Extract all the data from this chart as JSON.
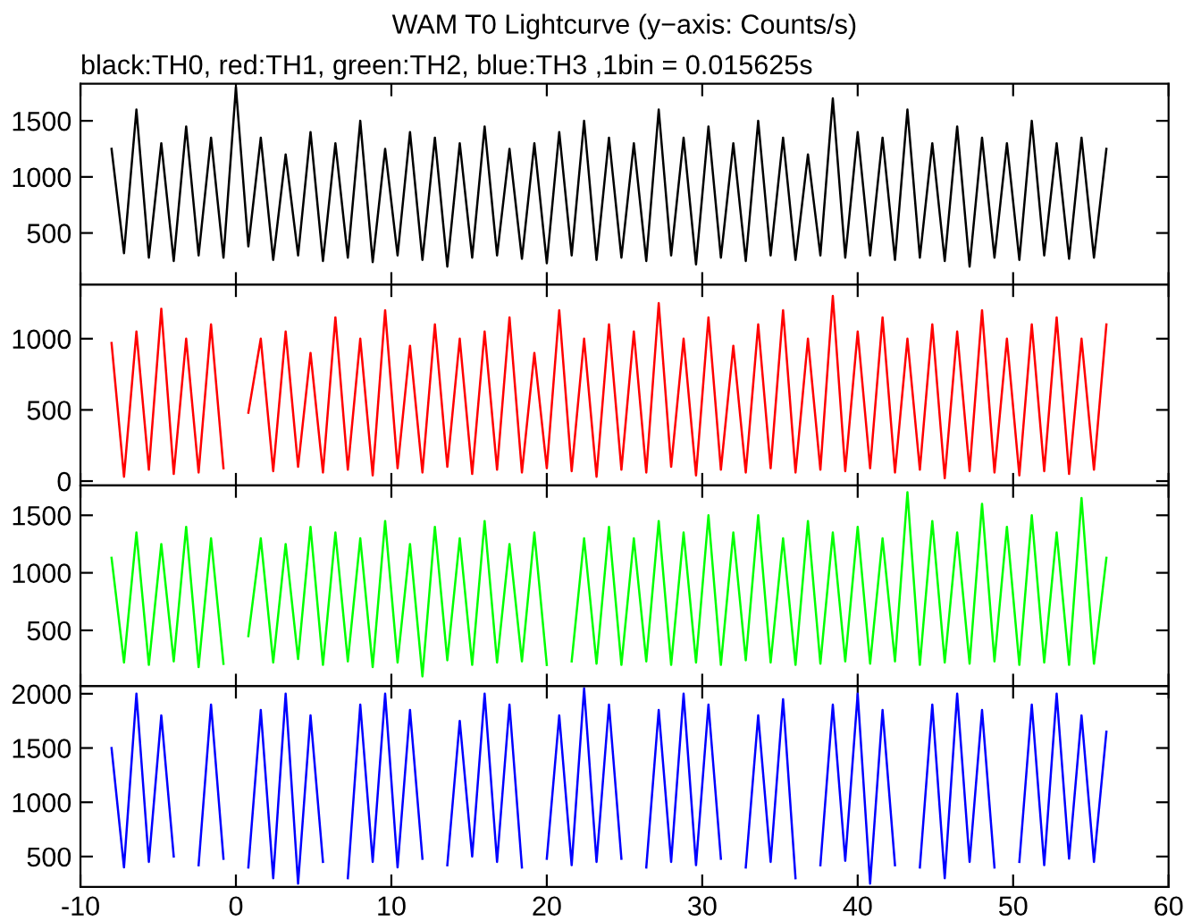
{
  "chart_data": [
    {
      "type": "line",
      "title": "WAM T0 Lightcurve (y−axis: Counts/s)",
      "subtitle": "black:TH0, red:TH1, green:TH2, blue:TH3 ,1bin = 0.015625s",
      "tick_labels": "y",
      "grid": false,
      "marker": "none",
      "line_style": "solid",
      "xlim": [
        -10,
        60
      ],
      "xticks": [
        -10,
        0,
        10,
        20,
        30,
        40,
        50,
        60
      ],
      "ylim": [
        40,
        1830
      ],
      "yticks": [
        500,
        1000,
        1500
      ],
      "x": [
        -8,
        -7.2,
        -6.4,
        -5.6,
        -4.8,
        -4,
        -3.2,
        -2.4,
        -1.6,
        -0.8,
        0,
        0.8,
        1.6,
        2.4,
        3.2,
        4,
        4.8,
        5.6,
        6.4,
        7.2,
        8,
        8.8,
        9.6,
        10.4,
        11.2,
        12,
        12.8,
        13.6,
        14.4,
        15.2,
        16,
        16.8,
        17.6,
        18.4,
        19.2,
        20,
        20.8,
        21.6,
        22.4,
        23.2,
        24,
        24.8,
        25.6,
        26.4,
        27.2,
        28,
        28.8,
        29.6,
        30.4,
        31.2,
        32,
        32.8,
        33.6,
        34.4,
        35.2,
        36,
        36.8,
        37.6,
        38.4,
        39.2,
        40,
        40.8,
        41.6,
        42.4,
        43.2,
        44,
        44.8,
        45.6,
        46.4,
        47.2,
        48,
        48.8,
        49.6,
        50.4,
        51.2,
        52,
        52.8,
        53.6,
        54.4,
        55.2,
        56
      ],
      "series": [
        {
          "color": "#000000",
          "values": [
            1250,
            320,
            1600,
            280,
            1300,
            250,
            1450,
            300,
            1350,
            280,
            1800,
            380,
            1350,
            260,
            1200,
            300,
            1400,
            250,
            1300,
            280,
            1500,
            240,
            1250,
            300,
            1400,
            260,
            1350,
            200,
            1300,
            280,
            1450,
            300,
            1250,
            270,
            1300,
            230,
            1400,
            300,
            1500,
            260,
            1350,
            280,
            1300,
            250,
            1600,
            300,
            1350,
            220,
            1450,
            280,
            1300,
            250,
            1500,
            300,
            1350,
            260,
            1200,
            300,
            1700,
            280,
            1400,
            300,
            1350,
            260,
            1600,
            280,
            1300,
            250,
            1450,
            200,
            1350,
            280,
            1300,
            260,
            1500,
            300,
            1300,
            270,
            1350,
            280,
            1250
          ]
        }
      ]
    },
    {
      "type": "line",
      "tick_labels": "y",
      "grid": false,
      "marker": "none",
      "line_style": "solid",
      "xlim": [
        -10,
        60
      ],
      "xticks": [
        -10,
        0,
        10,
        20,
        30,
        40,
        50,
        60
      ],
      "ylim": [
        -30,
        1380
      ],
      "yticks": [
        0,
        500,
        1000
      ],
      "x": [
        -8,
        -7.2,
        -6.4,
        -5.6,
        -4.8,
        -4,
        -3.2,
        -2.4,
        -1.6,
        -0.8,
        0,
        0.8,
        1.6,
        2.4,
        3.2,
        4,
        4.8,
        5.6,
        6.4,
        7.2,
        8,
        8.8,
        9.6,
        10.4,
        11.2,
        12,
        12.8,
        13.6,
        14.4,
        15.2,
        16,
        16.8,
        17.6,
        18.4,
        19.2,
        20,
        20.8,
        21.6,
        22.4,
        23.2,
        24,
        24.8,
        25.6,
        26.4,
        27.2,
        28,
        28.8,
        29.6,
        30.4,
        31.2,
        32,
        32.8,
        33.6,
        34.4,
        35.2,
        36,
        36.8,
        37.6,
        38.4,
        39.2,
        40,
        40.8,
        41.6,
        42.4,
        43.2,
        44,
        44.8,
        45.6,
        46.4,
        47.2,
        48,
        48.8,
        49.6,
        50.4,
        51.2,
        52,
        52.8,
        53.6,
        54.4,
        55.2,
        56
      ],
      "series": [
        {
          "color": "#ff0000",
          "values": [
            970,
            30,
            1050,
            80,
            1210,
            50,
            1000,
            60,
            1100,
            90,
            null,
            480,
            1000,
            70,
            1050,
            100,
            900,
            60,
            1150,
            80,
            1000,
            40,
            1200,
            90,
            950,
            60,
            1100,
            100,
            1000,
            50,
            1050,
            80,
            1150,
            60,
            900,
            90,
            1200,
            70,
            1000,
            30,
            1100,
            80,
            1050,
            60,
            1250,
            100,
            1000,
            40,
            1150,
            80,
            950,
            60,
            1100,
            90,
            1200,
            60,
            1000,
            80,
            1300,
            70,
            1050,
            90,
            1150,
            60,
            1000,
            80,
            1100,
            20,
            1050,
            70,
            1200,
            60,
            1000,
            40,
            1100,
            70,
            1150,
            50,
            1000,
            80,
            1100
          ]
        }
      ]
    },
    {
      "type": "line",
      "tick_labels": "y",
      "grid": false,
      "marker": "none",
      "line_style": "solid",
      "xlim": [
        -10,
        60
      ],
      "xticks": [
        -10,
        0,
        10,
        20,
        30,
        40,
        50,
        60
      ],
      "ylim": [
        15,
        1760
      ],
      "yticks": [
        500,
        1000,
        1500
      ],
      "x": [
        -8,
        -7.2,
        -6.4,
        -5.6,
        -4.8,
        -4,
        -3.2,
        -2.4,
        -1.6,
        -0.8,
        0,
        0.8,
        1.6,
        2.4,
        3.2,
        4,
        4.8,
        5.6,
        6.4,
        7.2,
        8,
        8.8,
        9.6,
        10.4,
        11.2,
        12,
        12.8,
        13.6,
        14.4,
        15.2,
        16,
        16.8,
        17.6,
        18.4,
        19.2,
        20,
        20.8,
        21.6,
        22.4,
        23.2,
        24,
        24.8,
        25.6,
        26.4,
        27.2,
        28,
        28.8,
        29.6,
        30.4,
        31.2,
        32,
        32.8,
        33.6,
        34.4,
        35.2,
        36,
        36.8,
        37.6,
        38.4,
        39.2,
        40,
        40.8,
        41.6,
        42.4,
        43.2,
        44,
        44.8,
        45.6,
        46.4,
        47.2,
        48,
        48.8,
        49.6,
        50.4,
        51.2,
        52,
        52.8,
        53.6,
        54.4,
        55.2,
        56
      ],
      "series": [
        {
          "color": "#00ff00",
          "values": [
            1130,
            220,
            1350,
            200,
            1250,
            230,
            1400,
            180,
            1300,
            210,
            null,
            450,
            1300,
            220,
            1250,
            250,
            1400,
            200,
            1350,
            230,
            1300,
            180,
            1450,
            220,
            1250,
            100,
            1400,
            240,
            1300,
            200,
            1450,
            220,
            1250,
            230,
            1350,
            200,
            null,
            230,
            1300,
            210,
            1400,
            200,
            1300,
            230,
            1450,
            200,
            1350,
            220,
            1500,
            200,
            1350,
            240,
            1500,
            220,
            1300,
            200,
            1450,
            210,
            1350,
            230,
            1400,
            210,
            1300,
            230,
            1700,
            200,
            1450,
            220,
            1350,
            210,
            1600,
            230,
            1400,
            200,
            1500,
            220,
            1350,
            200,
            1650,
            210,
            1130
          ]
        }
      ]
    },
    {
      "type": "line",
      "grid": false,
      "marker": "none",
      "line_style": "solid",
      "xlim": [
        -10,
        60
      ],
      "xticks": [
        -10,
        0,
        10,
        20,
        30,
        40,
        50,
        60
      ],
      "ylim": [
        220,
        2070
      ],
      "yticks": [
        500,
        1000,
        1500,
        2000
      ],
      "x": [
        -8,
        -7.2,
        -6.4,
        -5.6,
        -4.8,
        -4,
        -3.2,
        -2.4,
        -1.6,
        -0.8,
        0,
        0.8,
        1.6,
        2.4,
        3.2,
        4,
        4.8,
        5.6,
        6.4,
        7.2,
        8,
        8.8,
        9.6,
        10.4,
        11.2,
        12,
        12.8,
        13.6,
        14.4,
        15.2,
        16,
        16.8,
        17.6,
        18.4,
        19.2,
        20,
        20.8,
        21.6,
        22.4,
        23.2,
        24,
        24.8,
        25.6,
        26.4,
        27.2,
        28,
        28.8,
        29.6,
        30.4,
        31.2,
        32,
        32.8,
        33.6,
        34.4,
        35.2,
        36,
        36.8,
        37.6,
        38.4,
        39.2,
        40,
        40.8,
        41.6,
        42.4,
        43.2,
        44,
        44.8,
        45.6,
        46.4,
        47.2,
        48,
        48.8,
        49.6,
        50.4,
        51.2,
        52,
        52.8,
        53.6,
        54.4,
        55.2,
        56
      ],
      "series": [
        {
          "color": "#0000ff",
          "values": [
            1500,
            400,
            2000,
            450,
            1800,
            500,
            null,
            420,
            1900,
            480,
            null,
            400,
            1850,
            300,
            2000,
            250,
            1800,
            450,
            null,
            300,
            1900,
            450,
            2000,
            400,
            1850,
            480,
            null,
            420,
            1750,
            500,
            2000,
            450,
            1900,
            400,
            null,
            480,
            1800,
            420,
            2050,
            450,
            1900,
            480,
            null,
            400,
            1850,
            450,
            2000,
            420,
            1900,
            480,
            null,
            400,
            1800,
            450,
            1950,
            300,
            null,
            420,
            1900,
            460,
            2000,
            250,
            1850,
            420,
            null,
            400,
            1900,
            300,
            2000,
            450,
            1850,
            400,
            null,
            450,
            1900,
            420,
            2000,
            480,
            1800,
            450,
            1650
          ]
        }
      ]
    }
  ]
}
